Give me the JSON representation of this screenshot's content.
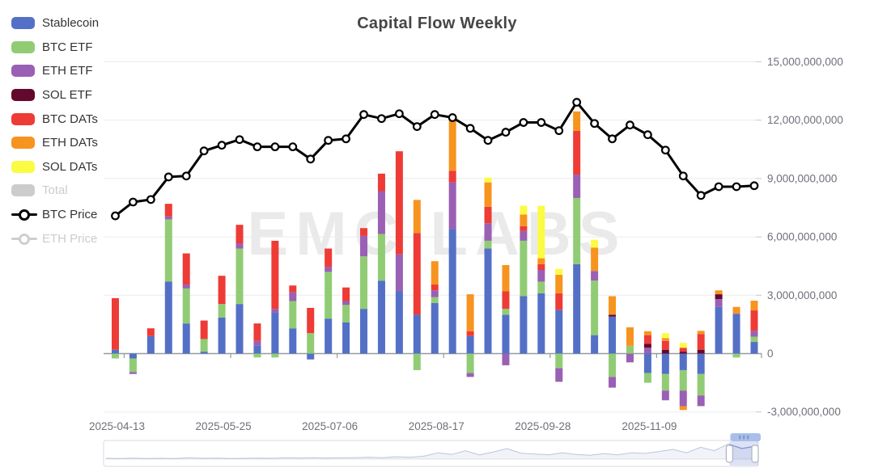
{
  "title": "Capital Flow Weekly",
  "watermark": "EMC LABS",
  "legend": {
    "items": [
      {
        "label": "Stablecoin",
        "type": "swatch",
        "color": "#5470C6",
        "disabled": false
      },
      {
        "label": "BTC ETF",
        "type": "swatch",
        "color": "#91CC75",
        "disabled": false
      },
      {
        "label": "ETH ETF",
        "type": "swatch",
        "color": "#9A60B4",
        "disabled": false
      },
      {
        "label": "SOL ETF",
        "type": "swatch",
        "color": "#63092E",
        "disabled": false
      },
      {
        "label": "BTC DATs",
        "type": "swatch",
        "color": "#EE3B36",
        "disabled": false
      },
      {
        "label": "ETH DATs",
        "type": "swatch",
        "color": "#F7941F",
        "disabled": false
      },
      {
        "label": "SOL DATs",
        "type": "swatch",
        "color": "#FBFB43",
        "disabled": false
      },
      {
        "label": "Total",
        "type": "swatch",
        "color": "#CCCCCC",
        "disabled": true
      },
      {
        "label": "BTC Price",
        "type": "line",
        "color": "#000000",
        "disabled": false
      },
      {
        "label": "ETH Price",
        "type": "line",
        "color": "#CFCFCF",
        "disabled": true
      }
    ]
  },
  "y_axis": {
    "labels": [
      "15,000,000,000",
      "12,000,000,000",
      "9,000,000,000",
      "6,000,000,000",
      "3,000,000,000",
      "0",
      "-3,000,000,000"
    ],
    "values": [
      15,
      12,
      9,
      6,
      3,
      0,
      -3
    ]
  },
  "x_axis": {
    "tick_labels": [
      "2025-04-13",
      "2025-05-25",
      "2025-07-06",
      "2025-08-17",
      "2025-09-28",
      "2025-11-09"
    ],
    "tick_indices": [
      0,
      6,
      12,
      18,
      24,
      30
    ]
  },
  "chart_data": {
    "type": "bar",
    "subtype": "stacked-bar-with-line",
    "unit": "USD (right axis), values in billions",
    "ylim": [
      -3.9,
      15.9
    ],
    "grid": true,
    "legend_position": "left",
    "categories": [
      "2025-04-13",
      "2025-04-20",
      "2025-04-27",
      "2025-05-04",
      "2025-05-11",
      "2025-05-18",
      "2025-05-25",
      "2025-06-01",
      "2025-06-08",
      "2025-06-15",
      "2025-06-22",
      "2025-06-29",
      "2025-07-06",
      "2025-07-13",
      "2025-07-20",
      "2025-07-27",
      "2025-08-03",
      "2025-08-10",
      "2025-08-17",
      "2025-08-24",
      "2025-08-31",
      "2025-09-07",
      "2025-09-14",
      "2025-09-21",
      "2025-09-28",
      "2025-10-05",
      "2025-10-12",
      "2025-10-19",
      "2025-10-26",
      "2025-11-02",
      "2025-11-09",
      "2025-11-16",
      "2025-11-23",
      "2025-11-30",
      "2025-12-07",
      "2025-12-14",
      "2025-12-21"
    ],
    "series": [
      {
        "name": "Stablecoin",
        "color": "#5470C6",
        "values": [
          0.2,
          -0.25,
          0.9,
          3.7,
          1.55,
          0.1,
          1.85,
          2.55,
          0.4,
          2.1,
          1.3,
          -0.3,
          1.8,
          1.6,
          2.3,
          3.75,
          3.2,
          2.0,
          2.6,
          6.4,
          0.9,
          5.4,
          2.0,
          2.95,
          3.1,
          2.25,
          4.6,
          0.95,
          1.9,
          0,
          -1.0,
          -1.05,
          -0.85,
          -1.05,
          2.4,
          2.05,
          0.6
        ]
      },
      {
        "name": "BTC ETF",
        "color": "#91CC75",
        "values": [
          -0.25,
          -0.7,
          0,
          3.2,
          1.8,
          0.65,
          0.7,
          2.85,
          -0.2,
          -0.2,
          1.4,
          1.05,
          2.4,
          0.9,
          2.7,
          2.4,
          0,
          -0.85,
          0.3,
          0,
          -1.0,
          0.4,
          0.3,
          2.85,
          0.6,
          -0.75,
          3.4,
          2.8,
          -1.2,
          0.4,
          -0.5,
          -0.85,
          -1.05,
          -1.1,
          0,
          -0.2,
          0.27
        ]
      },
      {
        "name": "ETH ETF",
        "color": "#9A60B4",
        "values": [
          0,
          -0.1,
          0,
          0.15,
          0.2,
          0,
          0,
          0.27,
          0.25,
          0.2,
          0.45,
          0,
          0.25,
          0.2,
          1.05,
          2.2,
          1.9,
          0,
          0.35,
          2.4,
          -0.2,
          0.9,
          -0.6,
          0.5,
          0.6,
          -0.7,
          1.2,
          0.5,
          -0.55,
          -0.45,
          0.3,
          -0.5,
          -0.8,
          -0.55,
          0.4,
          0,
          0.3
        ]
      },
      {
        "name": "SOL ETF",
        "color": "#63092E",
        "values": [
          0,
          0,
          0,
          0,
          0,
          0,
          0,
          0,
          0,
          0,
          0,
          0,
          0,
          0,
          0,
          0,
          0,
          0,
          0,
          0,
          0,
          0,
          0,
          0,
          0,
          0,
          0,
          0,
          0.1,
          0,
          0.2,
          0.2,
          0.1,
          0.2,
          0.25,
          0,
          0
        ]
      },
      {
        "name": "BTC DATs",
        "color": "#EE3B36",
        "values": [
          2.65,
          0,
          0.4,
          0.65,
          1.6,
          0.95,
          1.45,
          0.95,
          0.9,
          3.5,
          0.35,
          1.3,
          0.95,
          0.7,
          0.4,
          0.9,
          5.3,
          4.2,
          0.3,
          0.6,
          0.25,
          0.85,
          0.9,
          0.25,
          0.3,
          0.85,
          2.25,
          0,
          0,
          0,
          0.45,
          0.45,
          0.2,
          0.8,
          0,
          0,
          1.05
        ]
      },
      {
        "name": "ETH DATs",
        "color": "#F7941F",
        "values": [
          0,
          0,
          0,
          0,
          0,
          0,
          0,
          0,
          0,
          0,
          0,
          0,
          0,
          0,
          0,
          0,
          0,
          1.7,
          1.2,
          2.65,
          1.9,
          1.25,
          1.35,
          0.6,
          0.3,
          0.95,
          1.0,
          1.2,
          0.95,
          0.95,
          0.2,
          0.15,
          -0.2,
          0.17,
          0.2,
          0.35,
          0.5
        ]
      },
      {
        "name": "SOL DATs",
        "color": "#FBFB43",
        "values": [
          0,
          0,
          0,
          0,
          0,
          0,
          0,
          0,
          0,
          0,
          0,
          0,
          0,
          0,
          0,
          0,
          0,
          0,
          0,
          0,
          0,
          0.25,
          0,
          0.45,
          2.7,
          0.3,
          0,
          0.4,
          0,
          0,
          0,
          0.25,
          0.25,
          0,
          0,
          0,
          0
        ]
      }
    ],
    "line_series": {
      "name": "BTC Price",
      "color": "#000000",
      "axis_values_billions": [
        7.08,
        7.79,
        7.92,
        9.08,
        9.13,
        10.42,
        10.71,
        11.0,
        10.63,
        10.63,
        10.63,
        10.0,
        10.96,
        11.04,
        12.29,
        12.08,
        12.33,
        11.67,
        12.29,
        12.13,
        11.58,
        10.96,
        11.38,
        11.88,
        11.88,
        11.46,
        12.92,
        11.83,
        11.04,
        11.75,
        11.25,
        10.46,
        9.13,
        8.13,
        8.58,
        8.58,
        8.63
      ]
    }
  },
  "navigator": {
    "window": [
      0.956,
      1.0
    ],
    "values": [
      0.04,
      0.03,
      0.05,
      0.03,
      0.04,
      0.03,
      0.06,
      0.04,
      0.05,
      0.03,
      0.04,
      0.05,
      0.04,
      0.06,
      0.05,
      0.07,
      0.05,
      0.06,
      0.07,
      0.09,
      0.07,
      0.11,
      0.09,
      0.14,
      0.3,
      0.22,
      0.4,
      0.2,
      0.34,
      0.5,
      0.28,
      0.24,
      0.2,
      0.3,
      0.22,
      0.18,
      0.26,
      0.2,
      0.3,
      0.27,
      0.36,
      0.46,
      0.3,
      0.56,
      0.4,
      0.72,
      0.5,
      0.62
    ]
  }
}
